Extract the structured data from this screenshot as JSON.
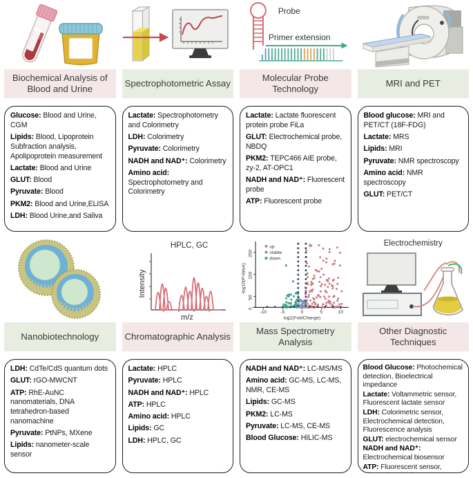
{
  "figure": {
    "banner_pink": "#f4e7e7",
    "banner_green": "#e8ede1",
    "box_border": "#1c1c1c"
  },
  "illustrations": {
    "probe_label": "Probe",
    "primer_label": "Primer extension",
    "chromatogram": {
      "title": "HPLC, GC",
      "ylabel": "Intensity",
      "xlabel": "m/z"
    },
    "volcano": {
      "legend_up": "up",
      "legend_stable": "stable",
      "legend_down": "down",
      "up_color": "#cc7f86",
      "stable_color": "#8292bb",
      "down_color": "#43a188",
      "ylabel": "-log10(P.Value)",
      "xlabel": "log2(FoldChange)",
      "yticks": [
        "0",
        "50",
        "150",
        "250"
      ],
      "xticks": [
        "-10",
        "-5",
        "0",
        "5",
        "10"
      ]
    },
    "electrochemistry_label": "Electrochemistry"
  },
  "panels": [
    {
      "title": "Biochemical Analysis of Blood and Urine",
      "tone": "pink",
      "items": [
        {
          "k": "Glucose:",
          "v": " Blood and Urine, CGM"
        },
        {
          "k": "Lipids:",
          "v": " Blood, Lipoprotein Subfraction analysis, Apolipoprotein measurement"
        },
        {
          "k": "Lactate:",
          "v": " Blood and Urine"
        },
        {
          "k": "GLUT:",
          "v": " Blood"
        },
        {
          "k": "Pyruvate:",
          "v": " Blood"
        },
        {
          "k": "PKM2:",
          "v": " Blood and Urine,ELISA"
        },
        {
          "k": "LDH:",
          "v": " Blood Urine,and Saliva"
        }
      ]
    },
    {
      "title": "Spectrophotometric Assay",
      "tone": "green",
      "items": [
        {
          "k": "Lactate:",
          "v": " Spectrophotometry and Colorimetry"
        },
        {
          "k": "LDH:",
          "v": " Colorimetry"
        },
        {
          "k": "Pyruvate:",
          "v": " Colorimetry"
        },
        {
          "k": "NADH and NAD⁺:",
          "v": " Colorimetry"
        },
        {
          "k": "Amino acid:",
          "v": " Spectrophotometry and Colorimetry"
        }
      ]
    },
    {
      "title": "Molecular Probe Technology",
      "tone": "pink",
      "items": [
        {
          "k": "Lactate:",
          "v": " Lactate fluorescent protein probe FiLa"
        },
        {
          "k": "GLUT:",
          "v": " Electrochemical probe, NBDQ"
        },
        {
          "k": "PKM2:",
          "v": " TEPC466 AIE probe, zy-2, AT-OPC1"
        },
        {
          "k": "NADH and NAD⁺:",
          "v": " Fluorescent probe"
        },
        {
          "k": "ATP:",
          "v": " Fluorescent probe"
        }
      ]
    },
    {
      "title": "MRI and PET",
      "tone": "green",
      "items": [
        {
          "k": "Blood glucose:",
          "v": " MRI and PET/CT (18F-FDG)"
        },
        {
          "k": "Lactate:",
          "v": " MRS"
        },
        {
          "k": "Lipids:",
          "v": " MRI"
        },
        {
          "k": "Pyruvate:",
          "v": " NMR spectroscopy"
        },
        {
          "k": "Amino acid:",
          "v": " NMR spectroscopy"
        },
        {
          "k": "GLUT:",
          "v": " PET/CT"
        }
      ]
    },
    {
      "title": "Nanobiotechnology",
      "tone": "green",
      "items": [
        {
          "k": "LDH:",
          "v": " CdTe/CdS quantum dots"
        },
        {
          "k": "GLUT:",
          "v": " rGO-MWCNT"
        },
        {
          "k": "ATP:",
          "v": " RhE-AuNC nanomaterials, DNA tetrahedron-based nanomachine"
        },
        {
          "k": "Pyruvate:",
          "v": " PtNPs, MXene"
        },
        {
          "k": "Lipids:",
          "v": " nanometer-scale sensor"
        }
      ]
    },
    {
      "title": "Chromatographic Analysis",
      "tone": "pink",
      "items": [
        {
          "k": "Lactate:",
          "v": " HPLC"
        },
        {
          "k": "Pyruvate:",
          "v": " HPLC"
        },
        {
          "k": "NADH and NAD⁺:",
          "v": " HPLC"
        },
        {
          "k": "ATP:",
          "v": " HPLC"
        },
        {
          "k": "Amino acid:",
          "v": " HPLC"
        },
        {
          "k": "Lipids:",
          "v": " GC"
        },
        {
          "k": "LDH:",
          "v": " HPLC, GC"
        }
      ]
    },
    {
      "title": "Mass Spectrometry Analysis",
      "tone": "green",
      "items": [
        {
          "k": "NADH and NAD⁺:",
          "v": " LC-MS/MS"
        },
        {
          "k": "Amino acid:",
          "v": " GC-MS, LC-MS, NMR, CE-MS"
        },
        {
          "k": "Lipids:",
          "v": " GC-MS"
        },
        {
          "k": "PKM2:",
          "v": " LC-MS"
        },
        {
          "k": "Pyruvate:",
          "v": " LC-MS, CE-MS"
        },
        {
          "k": "Blood Glucose:",
          "v": " HILIC-MS"
        }
      ]
    },
    {
      "title": "Other Diagnostic Techniques",
      "tone": "pink",
      "items": [
        {
          "k": "Blood Glucose:",
          "v": " Photochemical detection, Bioelectrical impedance"
        },
        {
          "k": "Lactate:",
          "v": " Voltammetric sensor, Fluorescent lactate sensor"
        },
        {
          "k": "LDH:",
          "v": " Colorimetric sensor, Electrochemical detection, Fluorescence analysis"
        },
        {
          "k": "GLUT:",
          "v": " electrochemical sensor"
        },
        {
          "k": "NADH and NAD⁺:",
          "v": " Electrochemical biosensor"
        },
        {
          "k": "ATP:",
          "v": " Fluorescent sensor, Electrochemical sensor"
        }
      ]
    }
  ]
}
